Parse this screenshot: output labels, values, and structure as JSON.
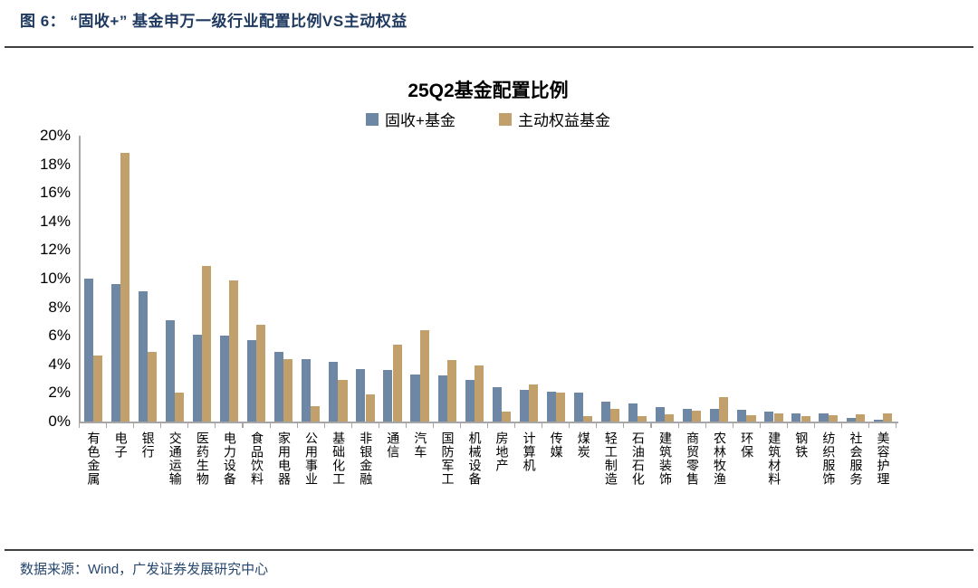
{
  "figure": {
    "caption": "图 6： “固收+” 基金申万一级行业配置比例VS主动权益"
  },
  "chart_data": {
    "type": "bar",
    "title": "25Q2基金配置比例",
    "categories": [
      "有色金属",
      "电子",
      "银行",
      "交通运输",
      "医药生物",
      "电力设备",
      "食品饮料",
      "家用电器",
      "公用事业",
      "基础化工",
      "非银金融",
      "通信",
      "汽车",
      "国防军工",
      "机械设备",
      "房地产",
      "计算机",
      "传媒",
      "煤炭",
      "轻工制造",
      "石油石化",
      "建筑装饰",
      "商贸零售",
      "农林牧渔",
      "环保",
      "建筑材料",
      "钢铁",
      "纺织服饰",
      "社会服务",
      "美容护理"
    ],
    "series": [
      {
        "name": "固收+基金",
        "color": "#6E87A5",
        "values": [
          10.0,
          9.6,
          9.1,
          7.1,
          6.1,
          6.0,
          5.7,
          4.9,
          4.4,
          4.2,
          3.7,
          3.6,
          3.3,
          3.2,
          2.9,
          2.4,
          2.2,
          2.1,
          2.0,
          1.4,
          1.3,
          1.0,
          0.9,
          0.9,
          0.8,
          0.7,
          0.55,
          0.55,
          0.25,
          0.15
        ]
      },
      {
        "name": "主动权益基金",
        "color": "#C2A06B",
        "values": [
          4.6,
          18.8,
          4.9,
          2.0,
          10.9,
          9.9,
          6.8,
          4.4,
          1.1,
          2.9,
          1.9,
          5.4,
          6.4,
          4.3,
          3.9,
          0.7,
          2.6,
          2.0,
          0.4,
          0.9,
          0.4,
          0.5,
          0.75,
          1.7,
          0.45,
          0.6,
          0.4,
          0.45,
          0.5,
          0.55
        ]
      }
    ],
    "xlabel": "",
    "ylabel": "",
    "ylim": [
      0,
      20
    ],
    "ytick_step": 2,
    "ytick_suffix": "%",
    "legend_position": "top-center",
    "grid": false
  },
  "footer": {
    "source": "数据来源：Wind，广发证券发展研究中心"
  },
  "colors": {
    "caption_navy": "#1F3A60",
    "footer_navy": "#27476E",
    "axis_gray": "#A6A6A6",
    "divider_gray": "#404040",
    "series_blue": "#6E87A5",
    "series_gold": "#C2A06B"
  }
}
